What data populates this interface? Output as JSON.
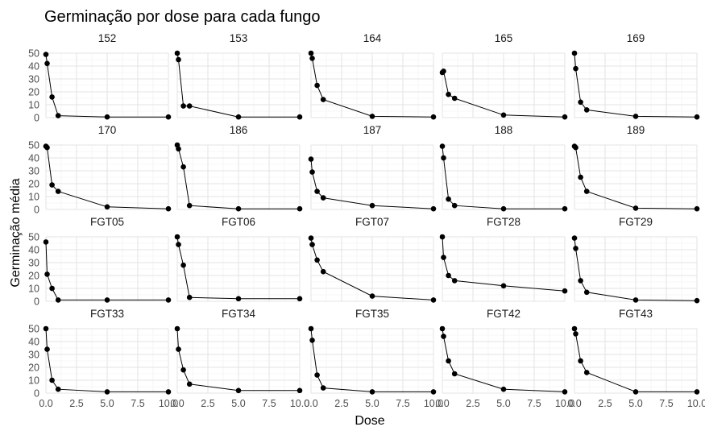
{
  "chart_data": {
    "type": "line",
    "title": "Germinação por dose para cada fungo",
    "xlabel": "Dose",
    "ylabel": "Germinação média",
    "xlim": [
      0,
      10
    ],
    "ylim": [
      0,
      50
    ],
    "x_ticks": [
      "0.0",
      "2.5",
      "5.0",
      "7.5",
      "10.0"
    ],
    "y_ticks": [
      "0",
      "10",
      "20",
      "30",
      "40",
      "50"
    ],
    "grid": true,
    "legend": "none",
    "x": [
      0,
      0.1,
      0.5,
      1,
      5,
      10
    ],
    "panels": [
      {
        "name": "152",
        "y": [
          49,
          42,
          16,
          1.5,
          0.5,
          0.5
        ]
      },
      {
        "name": "153",
        "y": [
          50,
          45,
          9,
          9,
          0.5,
          0.5
        ]
      },
      {
        "name": "164",
        "y": [
          50,
          46,
          25,
          14,
          1,
          0.5
        ]
      },
      {
        "name": "165",
        "y": [
          35,
          36,
          18,
          15,
          2,
          0.5
        ]
      },
      {
        "name": "169",
        "y": [
          50,
          38,
          12,
          6,
          1,
          0.5
        ]
      },
      {
        "name": "170",
        "y": [
          49,
          48,
          19,
          14,
          2,
          0.5
        ]
      },
      {
        "name": "186",
        "y": [
          50,
          47,
          33,
          3,
          0.5,
          0.5
        ]
      },
      {
        "name": "187",
        "y": [
          39,
          29,
          14,
          9,
          3,
          0.5
        ]
      },
      {
        "name": "188",
        "y": [
          49,
          40,
          8,
          3,
          0.5,
          0.5
        ]
      },
      {
        "name": "189",
        "y": [
          49,
          48,
          25,
          14,
          1,
          0.5
        ]
      },
      {
        "name": "FGT05",
        "y": [
          46,
          21,
          10,
          1,
          1,
          1
        ]
      },
      {
        "name": "FGT06",
        "y": [
          50,
          44,
          28,
          3,
          2,
          2
        ]
      },
      {
        "name": "FGT07",
        "y": [
          49,
          44,
          32,
          23,
          4,
          1
        ]
      },
      {
        "name": "FGT28",
        "y": [
          50,
          34,
          20,
          16,
          12,
          8
        ]
      },
      {
        "name": "FGT29",
        "y": [
          49,
          41,
          16,
          7,
          1,
          0.5
        ]
      },
      {
        "name": "FGT33",
        "y": [
          50,
          34,
          10,
          3,
          1,
          1
        ]
      },
      {
        "name": "FGT34",
        "y": [
          50,
          34,
          18,
          7,
          2,
          2
        ]
      },
      {
        "name": "FGT35",
        "y": [
          50,
          41,
          14,
          4,
          1,
          1
        ]
      },
      {
        "name": "FGT42",
        "y": [
          50,
          44,
          25,
          15,
          3,
          1
        ]
      },
      {
        "name": "FGT43",
        "y": [
          50,
          46,
          25,
          16,
          1,
          1
        ]
      }
    ]
  }
}
